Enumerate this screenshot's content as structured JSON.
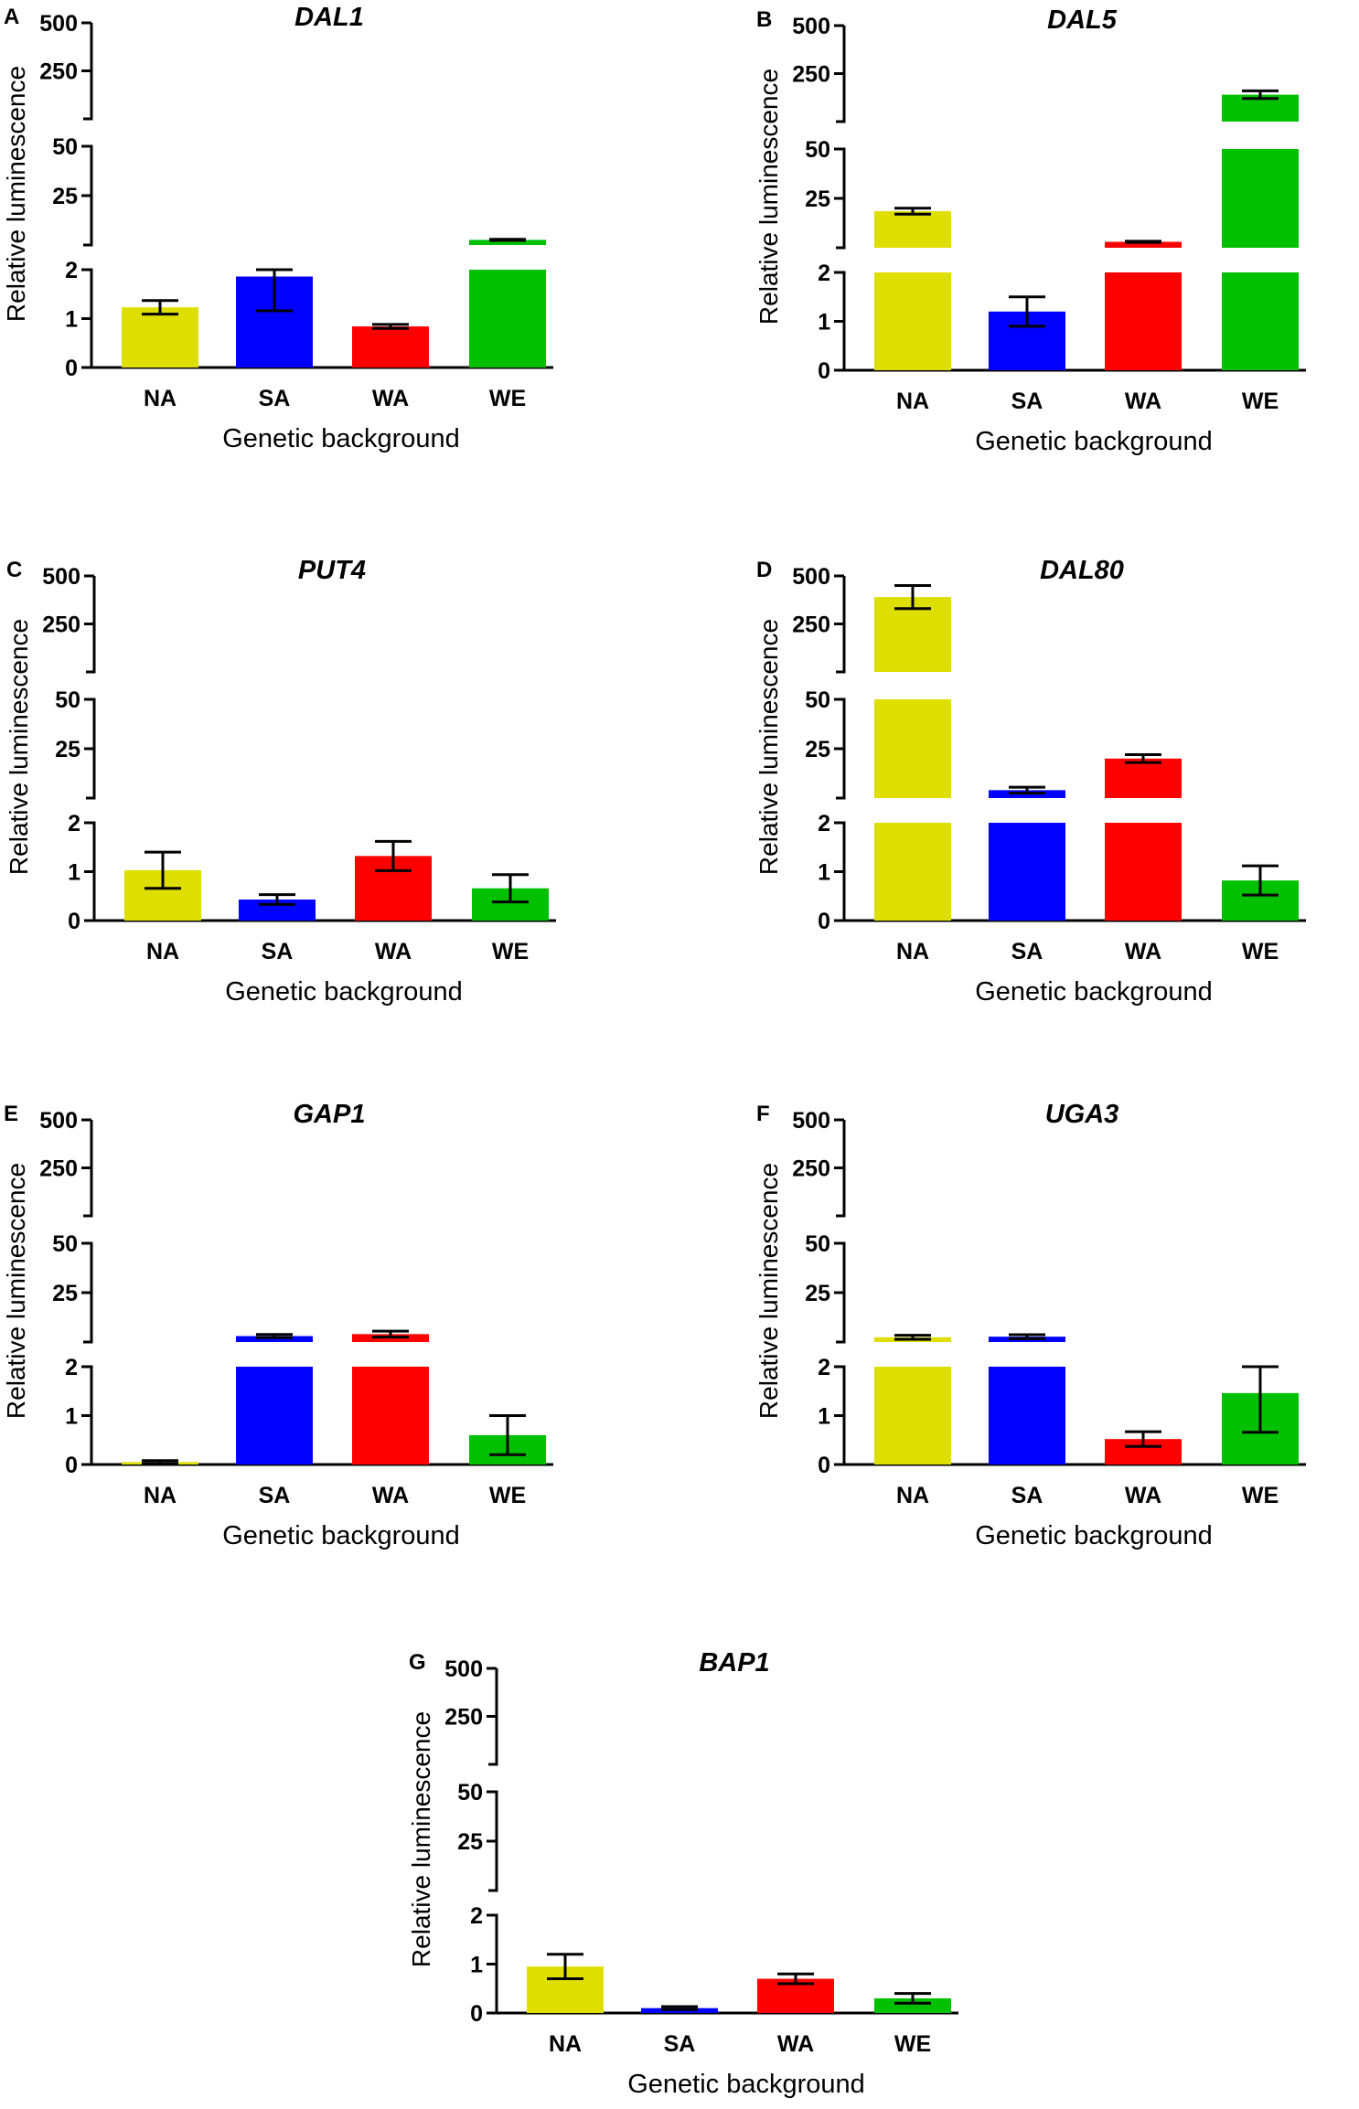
{
  "colors": {
    "NA": "#dede00",
    "SA": "#0000ff",
    "WA": "#ff0000",
    "WE": "#00c000",
    "axis": "#000000"
  },
  "chart_data": [
    {
      "type": "bar",
      "panel_label": "A",
      "title": "DAL1",
      "xlabel": "Genetic background",
      "ylabel": "Relative luminescence",
      "categories": [
        "NA",
        "SA",
        "WA",
        "WE"
      ],
      "y_segments": [
        {
          "range": [
            0,
            2
          ],
          "ticks": [
            "0",
            "1",
            "2"
          ]
        },
        {
          "range": [
            0,
            50
          ],
          "ticks": [
            "25",
            "50"
          ]
        },
        {
          "range": [
            0,
            500
          ],
          "ticks": [
            "250",
            "500"
          ]
        }
      ],
      "values": [
        1.23,
        1.86,
        0.84,
        2.6
      ],
      "errors": [
        0.14,
        0.7,
        0.04,
        0.3
      ]
    },
    {
      "type": "bar",
      "panel_label": "B",
      "title": "DAL5",
      "xlabel": "Genetic background",
      "ylabel": "Relative luminescence",
      "categories": [
        "NA",
        "SA",
        "WA",
        "WE"
      ],
      "y_segments": [
        {
          "range": [
            0,
            2
          ],
          "ticks": [
            "0",
            "1",
            "2"
          ]
        },
        {
          "range": [
            0,
            50
          ],
          "ticks": [
            "25",
            "50"
          ]
        },
        {
          "range": [
            0,
            500
          ],
          "ticks": [
            "250",
            "500"
          ]
        }
      ],
      "values": [
        18.5,
        1.2,
        3,
        140
      ],
      "errors": [
        1.5,
        0.3,
        0.3,
        20
      ]
    },
    {
      "type": "bar",
      "panel_label": "C",
      "title": "PUT4",
      "xlabel": "Genetic background",
      "ylabel": "Relative luminescence",
      "categories": [
        "NA",
        "SA",
        "WA",
        "WE"
      ],
      "y_segments": [
        {
          "range": [
            0,
            2
          ],
          "ticks": [
            "0",
            "1",
            "2"
          ]
        },
        {
          "range": [
            0,
            50
          ],
          "ticks": [
            "25",
            "50"
          ]
        },
        {
          "range": [
            0,
            500
          ],
          "ticks": [
            "250",
            "500"
          ]
        }
      ],
      "values": [
        1.03,
        0.43,
        1.32,
        0.66
      ],
      "errors": [
        0.37,
        0.1,
        0.3,
        0.28
      ]
    },
    {
      "type": "bar",
      "panel_label": "D",
      "title": "DAL80",
      "xlabel": "Genetic background",
      "ylabel": "Relative luminescence",
      "categories": [
        "NA",
        "SA",
        "WA",
        "WE"
      ],
      "y_segments": [
        {
          "range": [
            0,
            2
          ],
          "ticks": [
            "0",
            "1",
            "2"
          ]
        },
        {
          "range": [
            0,
            50
          ],
          "ticks": [
            "25",
            "50"
          ]
        },
        {
          "range": [
            0,
            500
          ],
          "ticks": [
            "250",
            "500"
          ]
        }
      ],
      "values": [
        390,
        4,
        20,
        0.82
      ],
      "errors": [
        60,
        1.5,
        2,
        0.3
      ]
    },
    {
      "type": "bar",
      "panel_label": "E",
      "title": "GAP1",
      "xlabel": "Genetic background",
      "ylabel": "Relative luminescence",
      "categories": [
        "NA",
        "SA",
        "WA",
        "WE"
      ],
      "y_segments": [
        {
          "range": [
            0,
            2
          ],
          "ticks": [
            "0",
            "1",
            "2"
          ]
        },
        {
          "range": [
            0,
            50
          ],
          "ticks": [
            "25",
            "50"
          ]
        },
        {
          "range": [
            0,
            500
          ],
          "ticks": [
            "250",
            "500"
          ]
        }
      ],
      "values": [
        0.05,
        3,
        4,
        0.6
      ],
      "errors": [
        0.03,
        0.8,
        1.5,
        0.4
      ]
    },
    {
      "type": "bar",
      "panel_label": "F",
      "title": "UGA3",
      "xlabel": "Genetic background",
      "ylabel": "Relative luminescence",
      "categories": [
        "NA",
        "SA",
        "WA",
        "WE"
      ],
      "y_segments": [
        {
          "range": [
            0,
            2
          ],
          "ticks": [
            "0",
            "1",
            "2"
          ]
        },
        {
          "range": [
            0,
            50
          ],
          "ticks": [
            "25",
            "50"
          ]
        },
        {
          "range": [
            0,
            500
          ],
          "ticks": [
            "250",
            "500"
          ]
        }
      ],
      "values": [
        2.4,
        2.7,
        0.52,
        1.46
      ],
      "errors": [
        1,
        1,
        0.15,
        0.8
      ]
    },
    {
      "type": "bar",
      "panel_label": "G",
      "title": "BAP1",
      "xlabel": "Genetic background",
      "ylabel": "Relative luminescence",
      "categories": [
        "NA",
        "SA",
        "WA",
        "WE"
      ],
      "y_segments": [
        {
          "range": [
            0,
            2
          ],
          "ticks": [
            "0",
            "1",
            "2"
          ]
        },
        {
          "range": [
            0,
            50
          ],
          "ticks": [
            "25",
            "50"
          ]
        },
        {
          "range": [
            0,
            500
          ],
          "ticks": [
            "250",
            "500"
          ]
        }
      ],
      "values": [
        0.95,
        0.1,
        0.7,
        0.3
      ],
      "errors": [
        0.25,
        0.03,
        0.1,
        0.1
      ]
    }
  ]
}
